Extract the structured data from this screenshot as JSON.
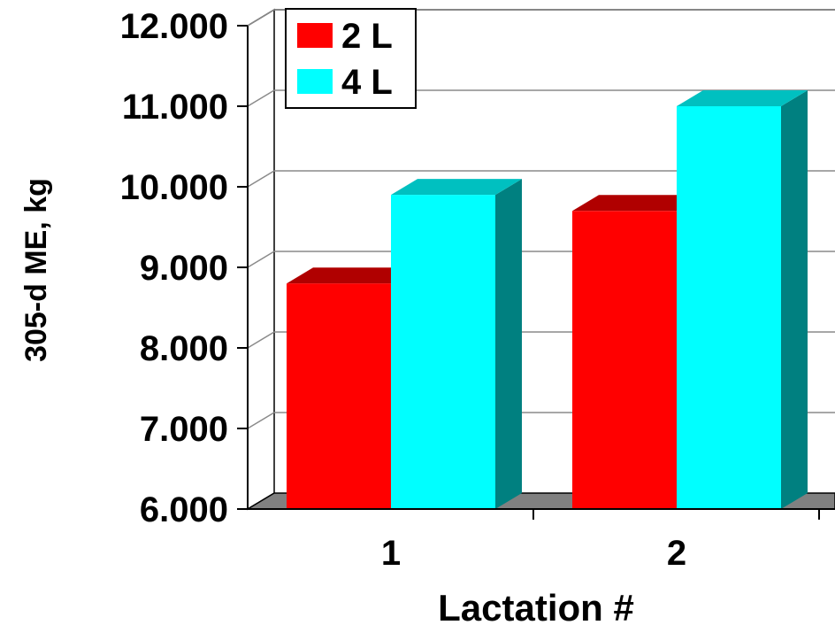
{
  "chart_data": {
    "type": "bar",
    "categories": [
      "1",
      "2"
    ],
    "series": [
      {
        "name": "2 L",
        "values": [
          8800,
          9700
        ],
        "color": "#ff0000",
        "side_color": "#c00000",
        "top_color": "#b00000"
      },
      {
        "name": "4 L",
        "values": [
          9900,
          11000
        ],
        "color": "#00ffff",
        "side_color": "#008080",
        "top_color": "#00c0c0"
      }
    ],
    "xlabel": "Lactation #",
    "ylabel": "305-d ME, kg",
    "ylim": [
      6000,
      12000
    ],
    "yticks": [
      6000,
      7000,
      8000,
      9000,
      10000,
      11000,
      12000
    ],
    "ytick_labels": [
      "6.000",
      "7.000",
      "8.000",
      "9.000",
      "10.000",
      "11.000",
      "12.000"
    ],
    "grid": true,
    "legend_position": "top-left",
    "floor_color": "#808080"
  }
}
